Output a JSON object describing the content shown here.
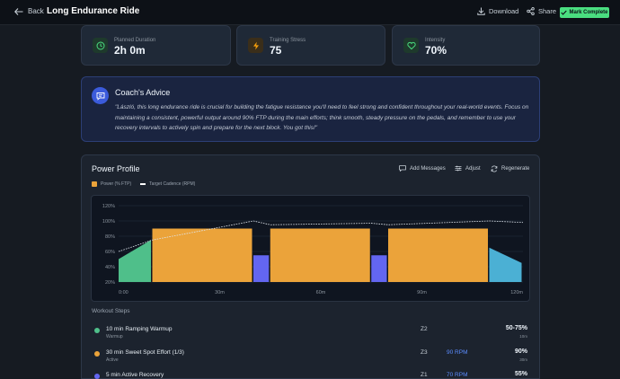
{
  "header": {
    "back_label": "Back",
    "title": "Long Endurance Ride",
    "download_label": "Download",
    "share_label": "Share",
    "mark_complete_label": "Mark Complete"
  },
  "stats": [
    {
      "label": "Planned Duration",
      "value": "2h 0m",
      "color": "#4ade80"
    },
    {
      "label": "Training Stress",
      "value": "75",
      "color": "#f59e0b"
    },
    {
      "label": "Intensity",
      "value": "70%",
      "color": "#4ade80"
    }
  ],
  "coach": {
    "title": "Coach's Advice",
    "text": "\"László, this long endurance ride is crucial for building the fatigue resistance you'll need to feel strong and confident throughout your real-world events. Focus on maintaining a consistent, powerful output around 90% FTP during the main efforts; think smooth, steady pressure on the pedals, and remember to use your recovery intervals to actively spin and prepare for the next block. You got this!\""
  },
  "power_profile": {
    "title": "Power Profile",
    "add_messages_label": "Add Messages",
    "adjust_label": "Adjust",
    "regenerate_label": "Regenerate",
    "legend_power": "Power (% FTP)",
    "legend_cadence": "Target Cadence (RPM)"
  },
  "chart_data": {
    "type": "area",
    "y_ticks": [
      "120%",
      "100%",
      "80%",
      "60%",
      "40%",
      "20%"
    ],
    "ylim": [
      20,
      120
    ],
    "x_ticks": [
      "0:00",
      "30m",
      "60m",
      "90m",
      "120m"
    ],
    "xlim": [
      0,
      120
    ],
    "power_blocks": [
      {
        "start": 0,
        "end": 10,
        "from": 50,
        "to": 75,
        "color": "#4fbf8a"
      },
      {
        "start": 10,
        "end": 40,
        "from": 90,
        "to": 90,
        "color": "#eba33a"
      },
      {
        "start": 40,
        "end": 45,
        "from": 55,
        "to": 55,
        "color": "#6366f1"
      },
      {
        "start": 45,
        "end": 75,
        "from": 90,
        "to": 90,
        "color": "#eba33a"
      },
      {
        "start": 75,
        "end": 80,
        "from": 55,
        "to": 55,
        "color": "#6366f1"
      },
      {
        "start": 80,
        "end": 110,
        "from": 90,
        "to": 90,
        "color": "#eba33a"
      },
      {
        "start": 110,
        "end": 120,
        "from": 65,
        "to": 45,
        "color": "#4bb0d4"
      }
    ],
    "cadence_line": [
      [
        0,
        60
      ],
      [
        10,
        75
      ],
      [
        40,
        100
      ],
      [
        45,
        95
      ],
      [
        75,
        97
      ],
      [
        80,
        95
      ],
      [
        110,
        100
      ],
      [
        120,
        98
      ]
    ]
  },
  "workout_steps": {
    "title": "Workout Steps",
    "items": [
      {
        "name": "10 min Ramping Warmup",
        "type": "Warmup",
        "zone": "Z2",
        "rpm": "",
        "pct": "50-75%",
        "dur": "10m",
        "color": "#4fbf8a"
      },
      {
        "name": "30 min Sweet Spot Effort (1/3)",
        "type": "Active",
        "zone": "Z3",
        "rpm": "90 RPM",
        "pct": "90%",
        "dur": "30m",
        "color": "#eba33a"
      },
      {
        "name": "5 min Active Recovery",
        "type": "",
        "zone": "Z1",
        "rpm": "70 RPM",
        "pct": "55%",
        "dur": "",
        "color": "#6366f1"
      }
    ]
  }
}
